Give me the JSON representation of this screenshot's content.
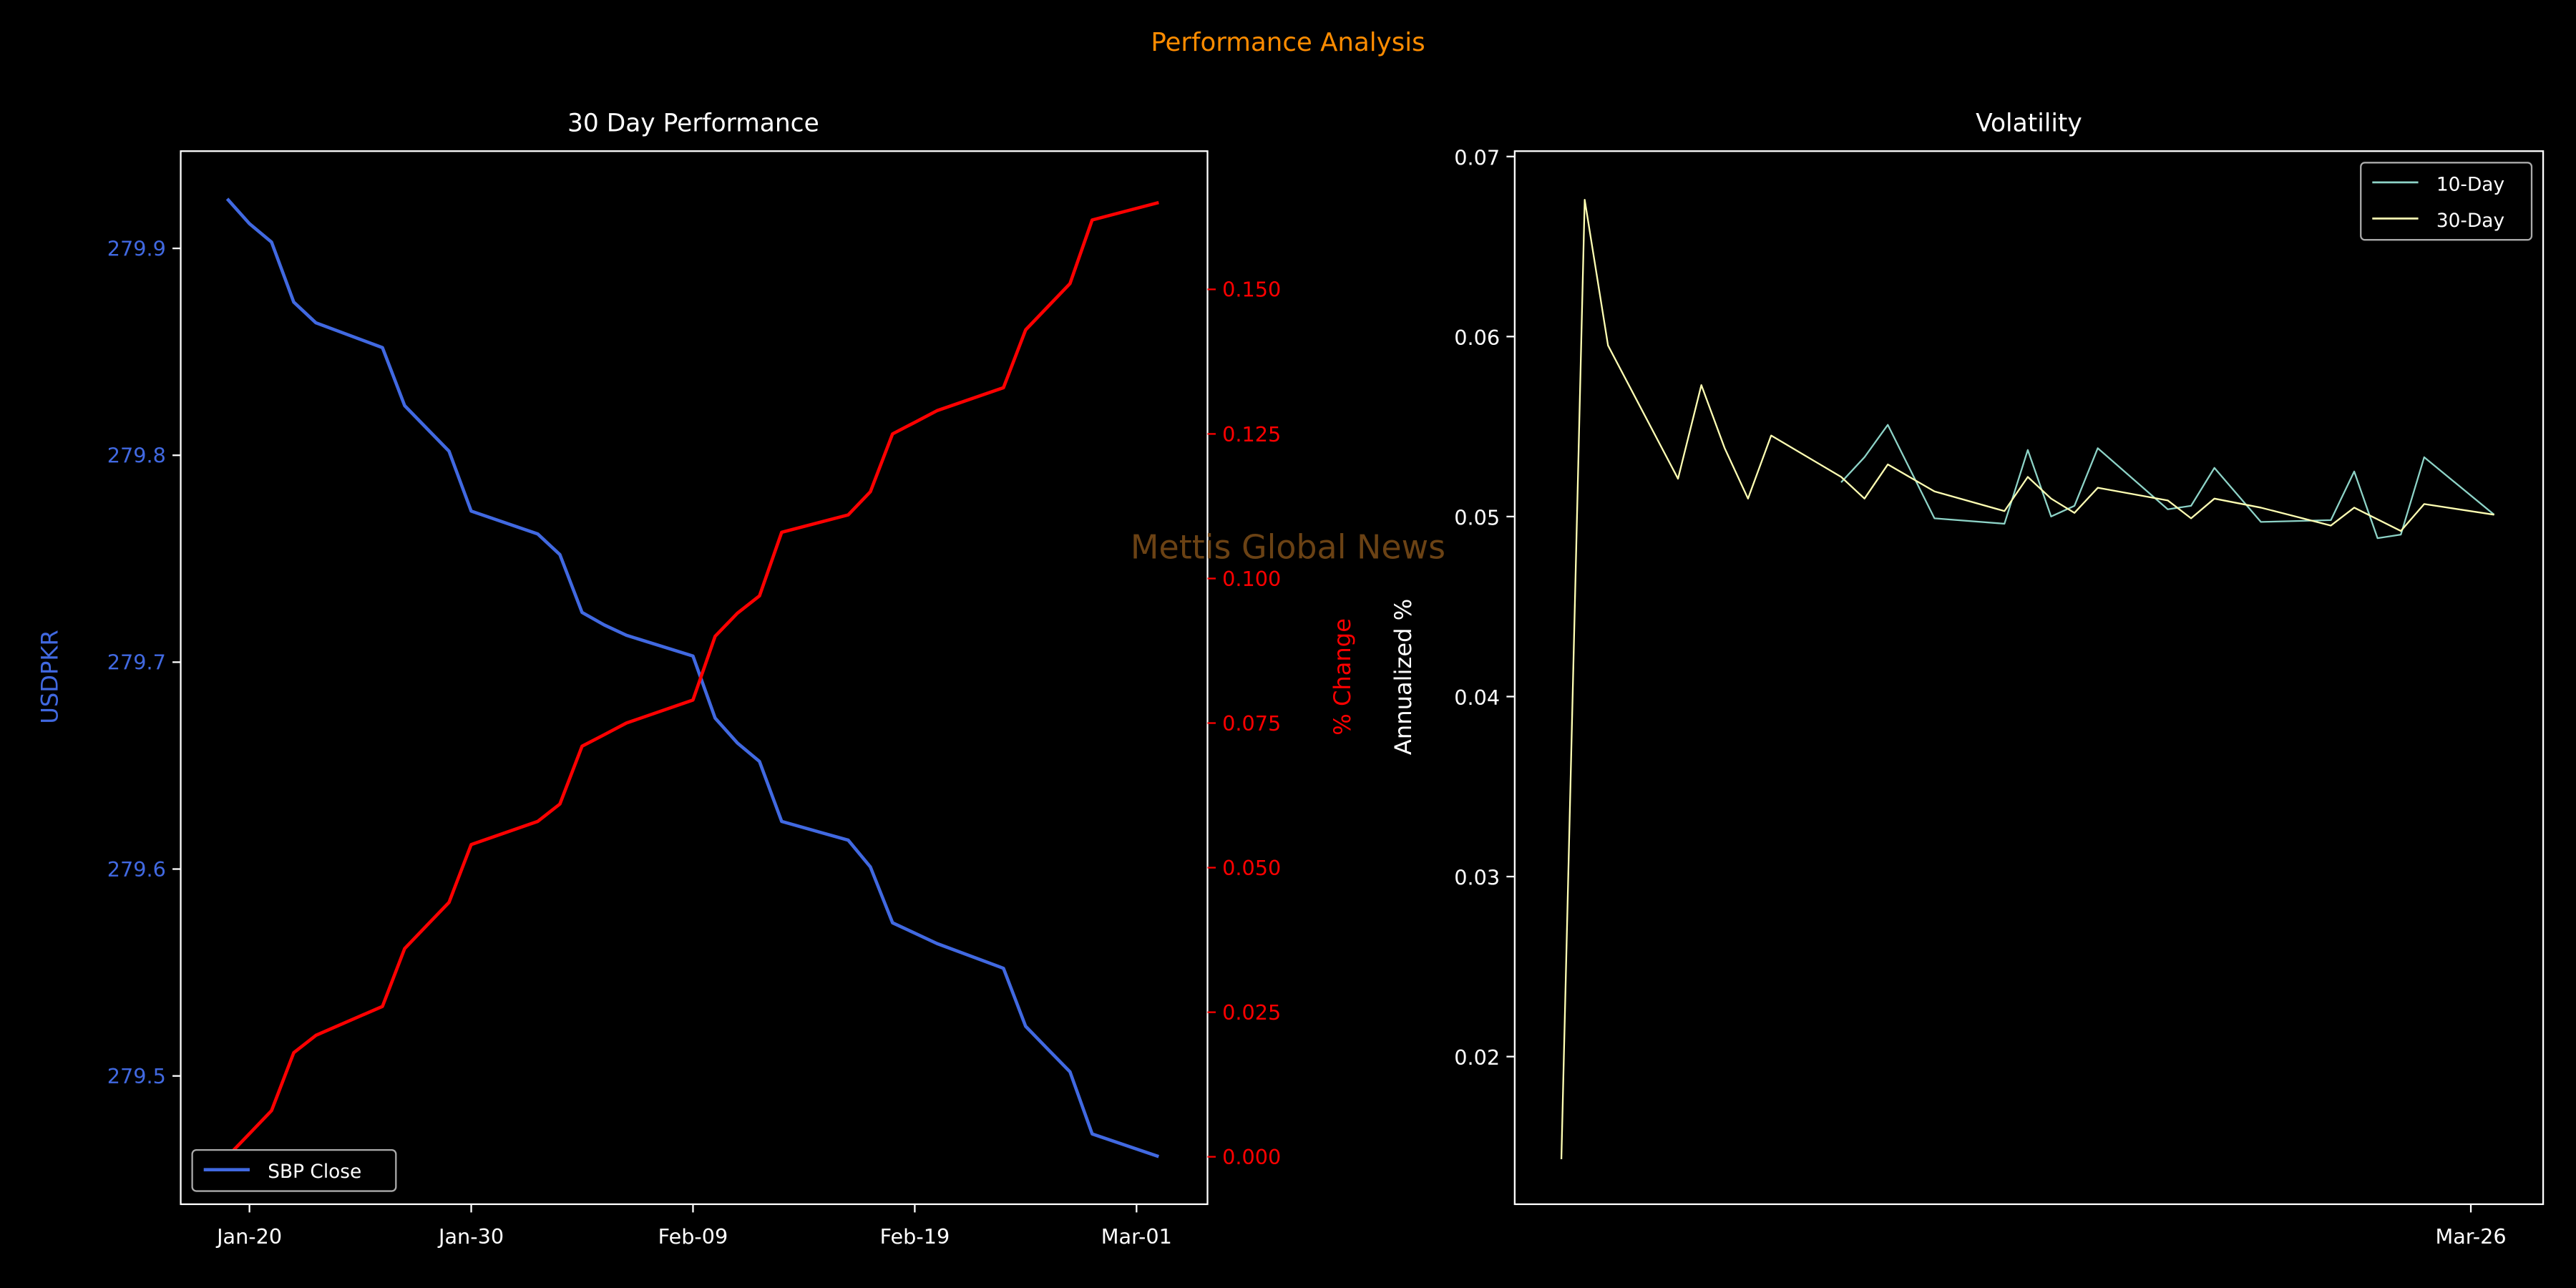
{
  "figure": {
    "title": "Performance Analysis",
    "watermark": "Mettis Global News",
    "colors": {
      "background": "#000000",
      "title": "#ff8c00",
      "watermark": "#6b4214"
    }
  },
  "chart_data": [
    {
      "type": "line",
      "title": "30 Day Performance",
      "xlabel": "",
      "x_unit": "days since Jan-19",
      "xlim": [
        -2.1,
        44.2
      ],
      "xticks": [
        {
          "day": 1,
          "label": "Jan-20"
        },
        {
          "day": 11,
          "label": "Jan-30"
        },
        {
          "day": 21,
          "label": "Feb-09"
        },
        {
          "day": 31,
          "label": "Feb-19"
        },
        {
          "day": 41,
          "label": "Mar-01"
        }
      ],
      "x": [
        0,
        1,
        2,
        3,
        4,
        7,
        8,
        9,
        10,
        11,
        14,
        15,
        16,
        17,
        18,
        21,
        22,
        23,
        24,
        25,
        28,
        29,
        30,
        31,
        32,
        35,
        36,
        37,
        38,
        39,
        42
      ],
      "left_axis": {
        "ylabel": "USDPKR",
        "color": "#4169e1",
        "ylim": [
          279.438,
          279.947
        ],
        "ticks": [
          {
            "v": 279.5,
            "label": "279.5"
          },
          {
            "v": 279.6,
            "label": "279.6"
          },
          {
            "v": 279.7,
            "label": "279.7"
          },
          {
            "v": 279.8,
            "label": "279.8"
          },
          {
            "v": 279.9,
            "label": "279.9"
          }
        ]
      },
      "right_axis": {
        "ylabel": "% Change",
        "color": "#ff0000",
        "ylim": [
          -0.0082,
          0.1739
        ],
        "ticks": [
          {
            "v": 0,
            "label": "0.000"
          },
          {
            "v": 0.025,
            "label": "0.025"
          },
          {
            "v": 0.05,
            "label": "0.050"
          },
          {
            "v": 0.075,
            "label": "0.075"
          },
          {
            "v": 0.1,
            "label": "0.100"
          },
          {
            "v": 0.125,
            "label": "0.125"
          },
          {
            "v": 0.15,
            "label": "0.150"
          }
        ]
      },
      "series": [
        {
          "name": "SBP Close",
          "axis": "left",
          "color": "#4169e1",
          "in_legend": true,
          "values": [
            279.924,
            279.912,
            279.903,
            279.874,
            279.864,
            279.852,
            279.824,
            279.813,
            279.802,
            279.773,
            279.762,
            279.752,
            279.724,
            279.718,
            279.713,
            279.703,
            279.673,
            279.661,
            279.652,
            279.623,
            279.614,
            279.601,
            279.574,
            279.569,
            279.564,
            279.552,
            279.524,
            279.513,
            279.502,
            279.472,
            279.461
          ]
        },
        {
          "name": "% Change",
          "axis": "right",
          "color": "#ff0000",
          "in_legend": false,
          "values": [
            0,
            0.004,
            0.008,
            0.018,
            0.021,
            0.026,
            0.036,
            0.04,
            0.044,
            0.054,
            0.058,
            0.061,
            0.071,
            0.073,
            0.075,
            0.079,
            0.09,
            0.094,
            0.097,
            0.108,
            0.111,
            0.115,
            0.125,
            0.127,
            0.129,
            0.133,
            0.143,
            0.147,
            0.151,
            0.162,
            0.165
          ]
        }
      ],
      "legend": {
        "placement": "lower-left",
        "label": "SBP Close"
      }
    },
    {
      "type": "line",
      "title": "Volatility",
      "xlabel": "",
      "ylabel": "Annualized %",
      "x_unit": "day index",
      "xlim": [
        -2,
        42.1
      ],
      "ylim": [
        0.0118,
        0.0703
      ],
      "xticks": [
        {
          "day": 39,
          "label": "Mar-26"
        }
      ],
      "yticks": [
        {
          "v": 0.02,
          "label": "0.02"
        },
        {
          "v": 0.03,
          "label": "0.03"
        },
        {
          "v": 0.04,
          "label": "0.04"
        },
        {
          "v": 0.05,
          "label": "0.05"
        },
        {
          "v": 0.06,
          "label": "0.06"
        },
        {
          "v": 0.07,
          "label": "0.07"
        }
      ],
      "series": [
        {
          "name": "10-Day",
          "color": "#8dd3c7",
          "x": [
            12,
            13,
            14,
            16,
            19,
            20,
            21,
            22,
            23,
            26,
            27,
            28,
            30,
            33,
            34,
            35,
            36,
            37,
            40
          ],
          "values": [
            0.0519,
            0.0533,
            0.0551,
            0.0499,
            0.0496,
            0.0537,
            0.05,
            0.0506,
            0.0538,
            0.0504,
            0.0506,
            0.0527,
            0.0497,
            0.0498,
            0.0525,
            0.0488,
            0.049,
            0.0533,
            0.0501
          ]
        },
        {
          "name": "30-Day",
          "color": "#ffffb3",
          "x": [
            0,
            1,
            2,
            5,
            6,
            7,
            8,
            9,
            12,
            13,
            14,
            16,
            19,
            20,
            21,
            22,
            23,
            26,
            27,
            28,
            30,
            33,
            34,
            36,
            37,
            40
          ],
          "values": [
            0.0143,
            0.0676,
            0.0595,
            0.0521,
            0.0573,
            0.0538,
            0.051,
            0.0545,
            0.0522,
            0.051,
            0.0529,
            0.0514,
            0.0503,
            0.0522,
            0.051,
            0.0502,
            0.0516,
            0.0509,
            0.0499,
            0.051,
            0.0505,
            0.0495,
            0.0505,
            0.0492,
            0.0507,
            0.0501
          ]
        }
      ],
      "legend": {
        "placement": "top-right",
        "labels": [
          "10-Day",
          "30-Day"
        ]
      }
    }
  ]
}
